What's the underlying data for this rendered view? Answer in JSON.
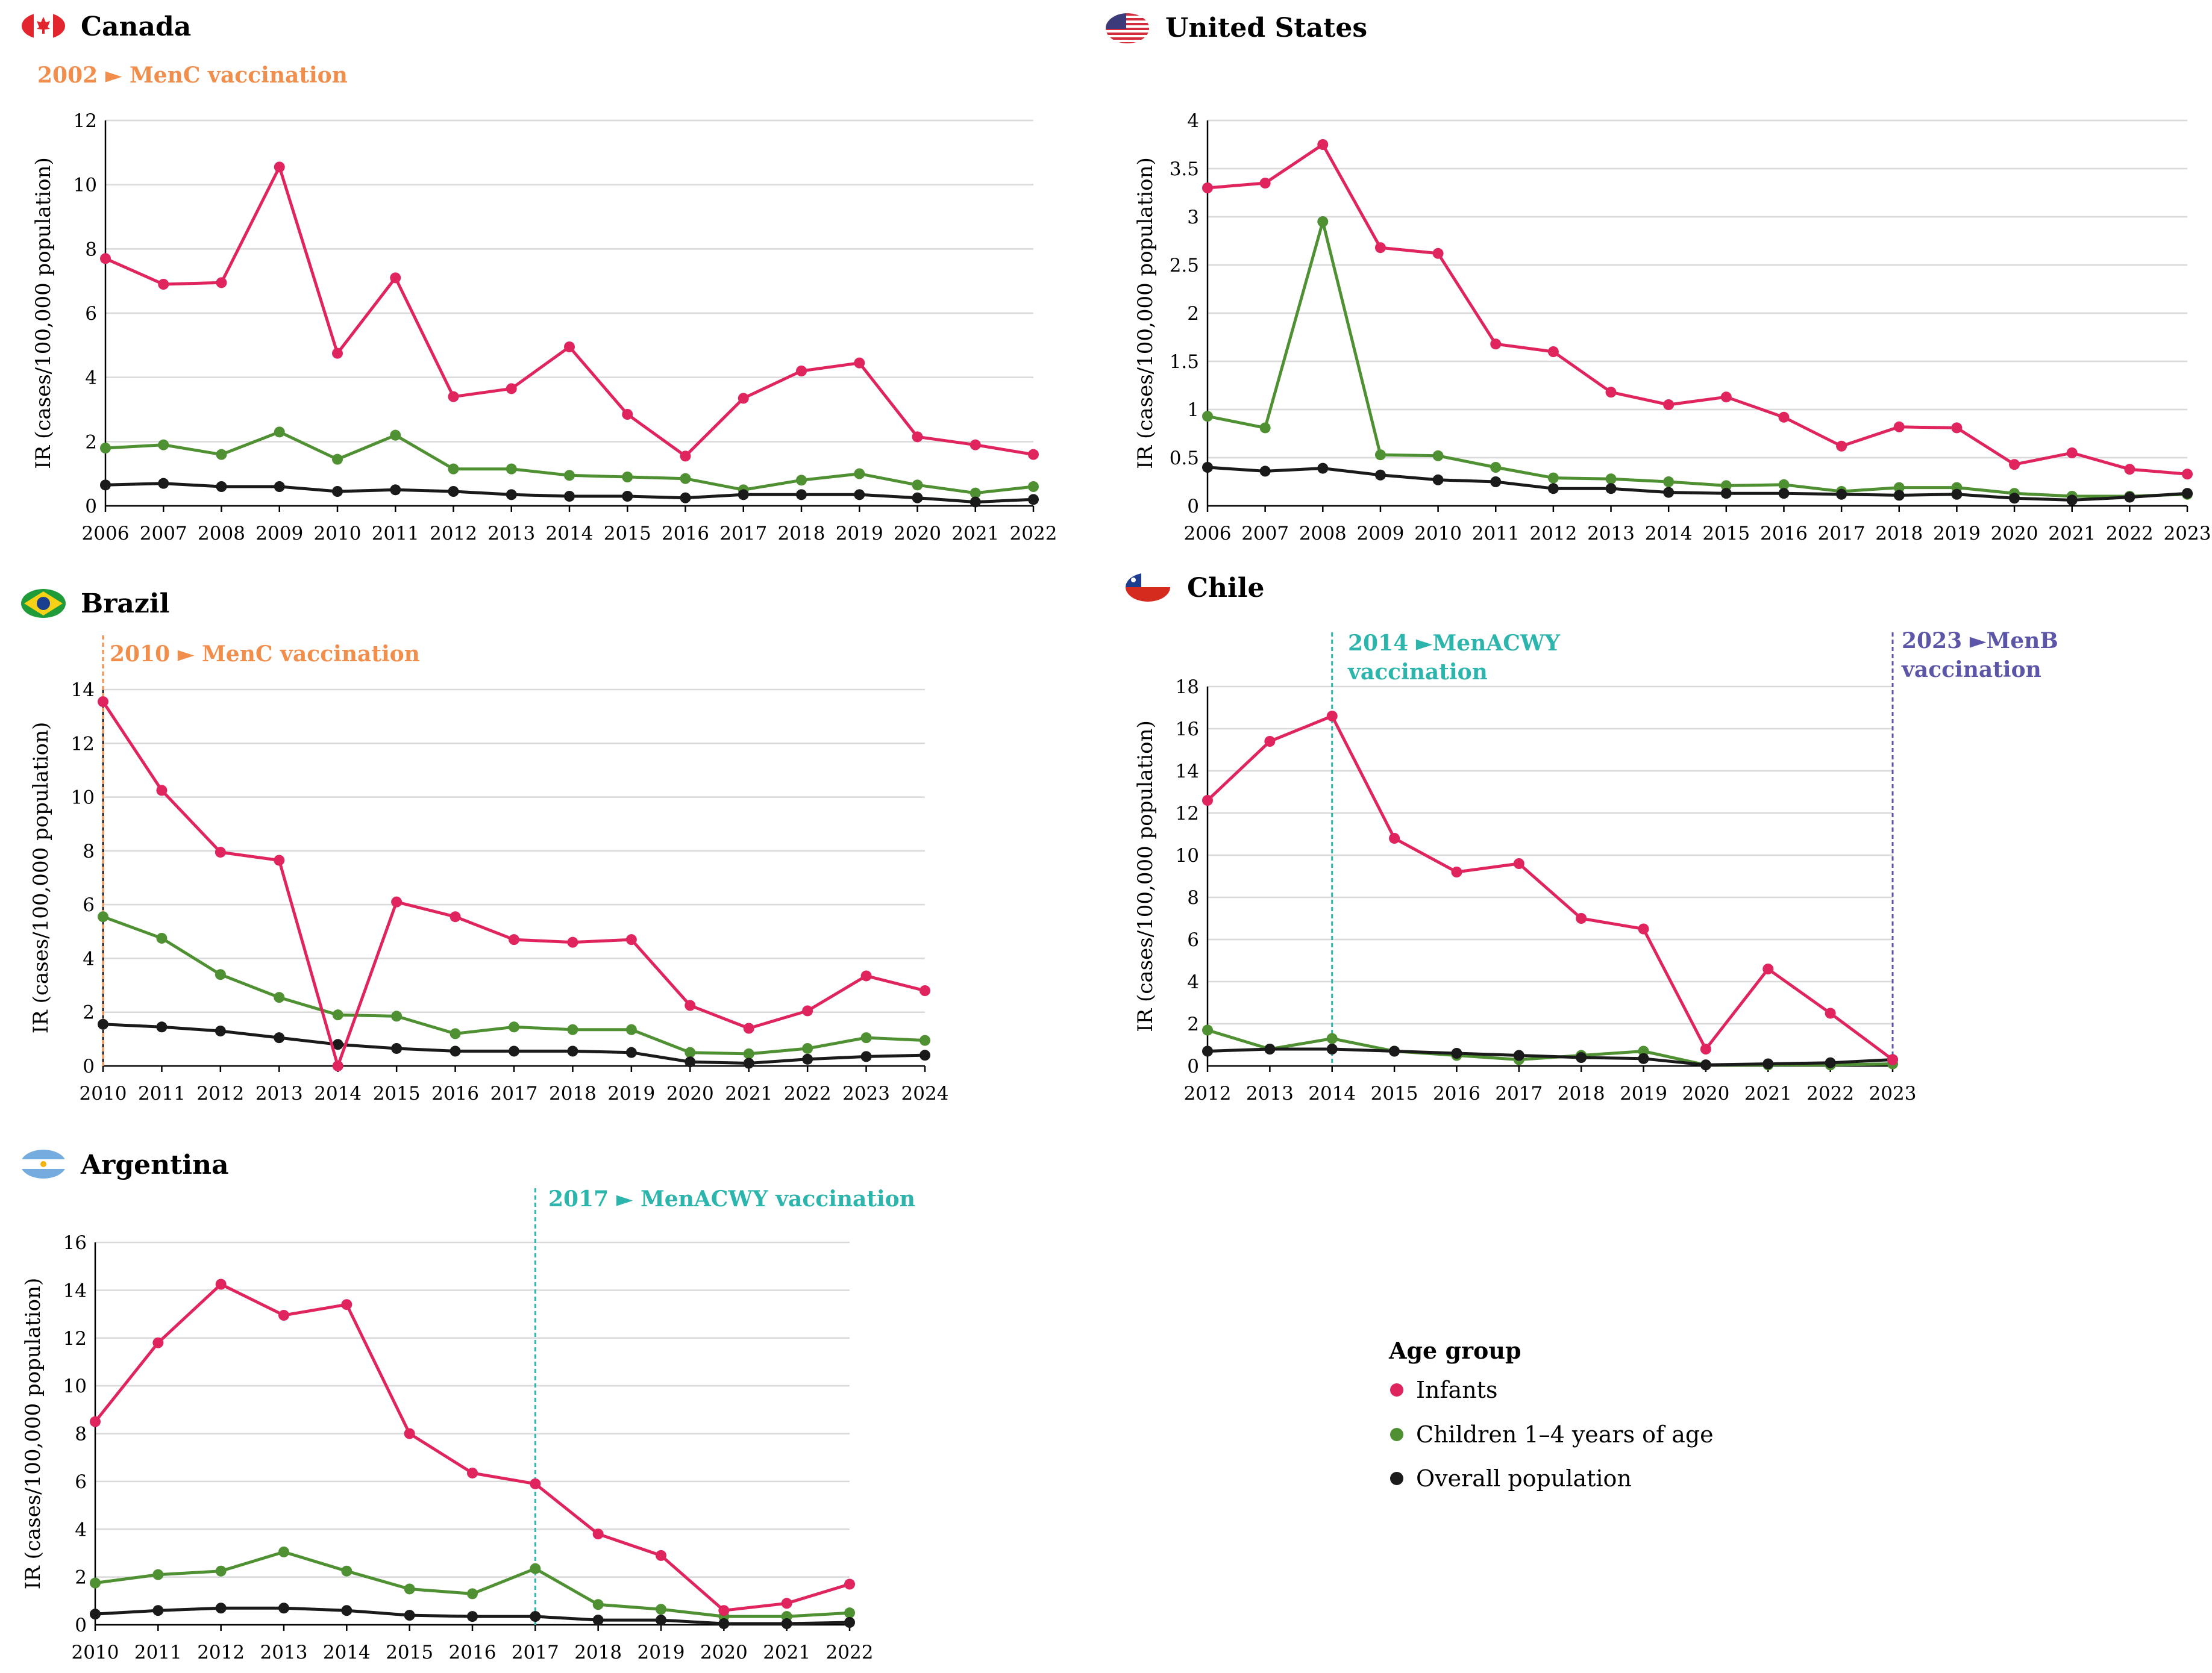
{
  "chart_data": [
    {
      "type": "line",
      "country": "Canada",
      "flag": "canada-flag",
      "ylabel": "IR (cases/100,000 population)",
      "ylim": [
        0,
        12
      ],
      "yticks": [
        0,
        2,
        4,
        6,
        8,
        10,
        12
      ],
      "ytick_labels": [
        "0",
        "2",
        "4",
        "6",
        "8",
        "10",
        "12"
      ],
      "categories": [
        "2006",
        "2007",
        "2008",
        "2009",
        "2010",
        "2011",
        "2012",
        "2013",
        "2014",
        "2015",
        "2016",
        "2017",
        "2018",
        "2019",
        "2020",
        "2021",
        "2022"
      ],
      "series": [
        {
          "name": "Infants",
          "values": [
            7.7,
            6.9,
            6.95,
            10.55,
            4.75,
            7.1,
            3.4,
            3.65,
            4.95,
            2.85,
            1.55,
            3.35,
            4.2,
            4.45,
            2.15,
            1.9,
            1.6
          ]
        },
        {
          "name": "Children 1–4 years of age",
          "values": [
            1.8,
            1.9,
            1.6,
            2.3,
            1.45,
            2.2,
            1.15,
            1.15,
            0.95,
            0.9,
            0.85,
            0.5,
            0.8,
            1.0,
            0.65,
            0.4,
            0.6
          ]
        },
        {
          "name": "Overall population",
          "values": [
            0.65,
            0.7,
            0.6,
            0.6,
            0.45,
            0.5,
            0.45,
            0.35,
            0.3,
            0.3,
            0.25,
            0.35,
            0.35,
            0.35,
            0.25,
            0.12,
            0.2
          ]
        }
      ],
      "vaccinations": [
        {
          "label": "2002 ► MenC vaccination",
          "year": null,
          "color": "#f28e4c"
        }
      ]
    },
    {
      "type": "line",
      "country": "United States",
      "flag": "usa-flag",
      "ylabel": "IR (cases/100,000 population)",
      "ylim": [
        0,
        4
      ],
      "yticks": [
        0,
        0.5,
        1,
        1.5,
        2,
        2.5,
        3,
        3.5,
        4
      ],
      "ytick_labels": [
        "0",
        "0.5",
        "1",
        "1.5",
        "2",
        "2.5",
        "3",
        "3.5",
        "4"
      ],
      "categories": [
        "2006",
        "2007",
        "2008",
        "2009",
        "2010",
        "2011",
        "2012",
        "2013",
        "2014",
        "2015",
        "2016",
        "2017",
        "2018",
        "2019",
        "2020",
        "2021",
        "2022",
        "2023"
      ],
      "series": [
        {
          "name": "Infants",
          "values": [
            3.3,
            3.35,
            3.75,
            2.68,
            2.62,
            1.68,
            1.6,
            1.18,
            1.05,
            1.13,
            0.92,
            0.62,
            0.82,
            0.81,
            0.43,
            0.55,
            0.38,
            0.33
          ]
        },
        {
          "name": "Children 1–4 years of age",
          "values": [
            0.93,
            0.81,
            2.95,
            0.53,
            0.52,
            0.4,
            0.29,
            0.28,
            0.25,
            0.21,
            0.22,
            0.15,
            0.19,
            0.19,
            0.13,
            0.1,
            0.1,
            0.12
          ]
        },
        {
          "name": "Overall population",
          "values": [
            0.4,
            0.36,
            0.39,
            0.32,
            0.27,
            0.25,
            0.18,
            0.18,
            0.14,
            0.13,
            0.13,
            0.12,
            0.11,
            0.12,
            0.08,
            0.06,
            0.09,
            0.13
          ]
        }
      ],
      "vaccinations": []
    },
    {
      "type": "line",
      "country": "Brazil",
      "flag": "brazil-flag",
      "ylabel": "IR (cases/100,000 population)",
      "ylim": [
        0,
        14
      ],
      "yticks": [
        0,
        2,
        4,
        6,
        8,
        10,
        12,
        14
      ],
      "ytick_labels": [
        "0",
        "2",
        "4",
        "6",
        "8",
        "10",
        "12",
        "14"
      ],
      "categories": [
        "2010",
        "2011",
        "2012",
        "2013",
        "2014",
        "2015",
        "2016",
        "2017",
        "2018",
        "2019",
        "2020",
        "2021",
        "2022",
        "2023",
        "2024"
      ],
      "series": [
        {
          "name": "Infants",
          "values": [
            13.55,
            10.25,
            7.95,
            7.65,
            0.0,
            6.1,
            5.55,
            4.7,
            4.6,
            4.7,
            2.25,
            1.4,
            2.05,
            3.35,
            2.8
          ]
        },
        {
          "name": "Children 1–4 years of age",
          "values": [
            5.55,
            4.75,
            3.4,
            2.55,
            1.9,
            1.85,
            1.2,
            1.45,
            1.35,
            1.35,
            0.5,
            0.45,
            0.65,
            1.05,
            0.95
          ]
        },
        {
          "name": "Overall population",
          "values": [
            1.55,
            1.45,
            1.3,
            1.05,
            0.8,
            0.65,
            0.55,
            0.55,
            0.55,
            0.5,
            0.15,
            0.1,
            0.25,
            0.35,
            0.4
          ]
        }
      ],
      "vaccinations": [
        {
          "label": "2010 ► MenC vaccination",
          "year": "2010",
          "color": "#f28e4c"
        }
      ]
    },
    {
      "type": "line",
      "country": "Chile",
      "flag": "chile-flag",
      "ylabel": "IR (cases/100,000 population)",
      "ylim": [
        0,
        18
      ],
      "yticks": [
        0,
        2,
        4,
        6,
        8,
        10,
        12,
        14,
        16,
        18
      ],
      "ytick_labels": [
        "0",
        "2",
        "4",
        "6",
        "8",
        "10",
        "12",
        "14",
        "16",
        "18"
      ],
      "categories": [
        "2012",
        "2013",
        "2014",
        "2015",
        "2016",
        "2017",
        "2018",
        "2019",
        "2020",
        "2021",
        "2022",
        "2023"
      ],
      "series": [
        {
          "name": "Infants",
          "values": [
            12.6,
            15.4,
            16.6,
            10.8,
            9.2,
            9.6,
            7.0,
            6.5,
            0.8,
            4.6,
            2.5,
            0.3
          ]
        },
        {
          "name": "Children 1–4 years of age",
          "values": [
            1.7,
            0.8,
            1.3,
            0.7,
            0.5,
            0.3,
            0.5,
            0.7,
            0.05,
            0.05,
            0.05,
            0.1
          ]
        },
        {
          "name": "Overall population",
          "values": [
            0.7,
            0.8,
            0.8,
            0.7,
            0.6,
            0.5,
            0.4,
            0.35,
            0.05,
            0.1,
            0.15,
            0.3
          ]
        }
      ],
      "vaccinations": [
        {
          "label_lines": [
            "2014 ►MenACWY",
            "vaccination"
          ],
          "year": "2014",
          "color": "#2bb5ac"
        },
        {
          "label_lines": [
            "2023 ►MenB",
            "vaccination"
          ],
          "year": "2023",
          "color": "#5c56a8"
        }
      ]
    },
    {
      "type": "line",
      "country": "Argentina",
      "flag": "argentina-flag",
      "ylabel": "IR (cases/100,000 population)",
      "ylim": [
        0,
        16
      ],
      "yticks": [
        0,
        2,
        4,
        6,
        8,
        10,
        12,
        14,
        16
      ],
      "ytick_labels": [
        "0",
        "2",
        "4",
        "6",
        "8",
        "10",
        "12",
        "14",
        "16"
      ],
      "categories": [
        "2010",
        "2011",
        "2012",
        "2013",
        "2014",
        "2015",
        "2016",
        "2017",
        "2018",
        "2019",
        "2020",
        "2021",
        "2022"
      ],
      "series": [
        {
          "name": "Infants",
          "values": [
            8.5,
            11.8,
            14.25,
            12.95,
            13.4,
            8.0,
            6.35,
            5.9,
            3.8,
            2.9,
            0.6,
            0.9,
            1.7
          ]
        },
        {
          "name": "Children 1–4 years of age",
          "values": [
            1.75,
            2.1,
            2.25,
            3.05,
            2.25,
            1.5,
            1.3,
            2.35,
            0.85,
            0.65,
            0.35,
            0.35,
            0.5
          ]
        },
        {
          "name": "Overall population",
          "values": [
            0.45,
            0.6,
            0.7,
            0.7,
            0.6,
            0.4,
            0.35,
            0.35,
            0.2,
            0.2,
            0.05,
            0.05,
            0.1
          ]
        }
      ],
      "vaccinations": [
        {
          "label": "2017 ► MenACWY vaccination",
          "year": "2017",
          "color": "#2bb5ac"
        }
      ]
    }
  ],
  "legend": {
    "title": "Age group",
    "items": [
      {
        "label": "Infants",
        "color": "#e0245e"
      },
      {
        "label": "Children 1–4 years of age",
        "color": "#4f9132"
      },
      {
        "label": "Overall population",
        "color": "#1a1a1a"
      }
    ]
  },
  "colors": {
    "Infants": "#e0245e",
    "Children 1–4 years of age": "#4f9132",
    "Overall population": "#1a1a1a"
  }
}
